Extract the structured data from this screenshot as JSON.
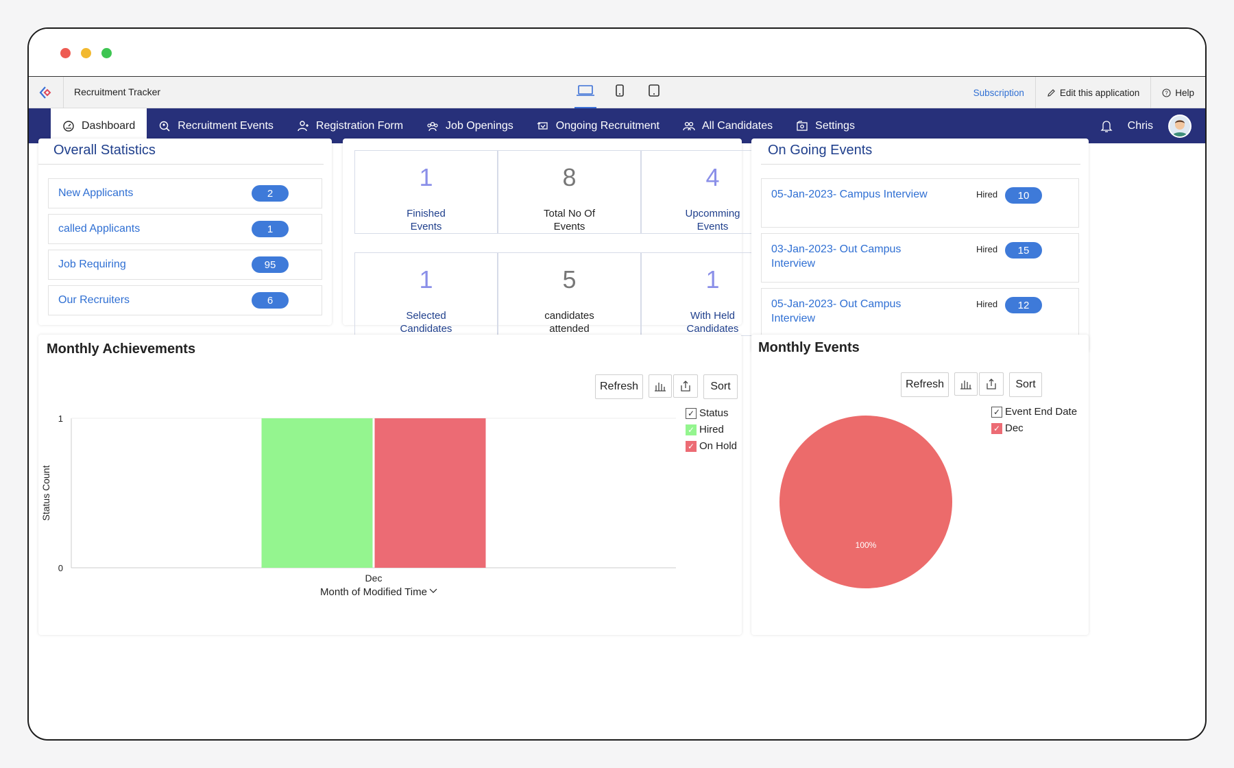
{
  "app": {
    "title": "Recruitment Tracker",
    "subscription": "Subscription",
    "edit_app": "Edit this application",
    "help": "Help"
  },
  "nav": {
    "items": [
      {
        "label": "Dashboard",
        "icon": "dashboard-icon"
      },
      {
        "label": "Recruitment Events",
        "icon": "search-people-icon"
      },
      {
        "label": "Registration Form",
        "icon": "user-form-icon"
      },
      {
        "label": "Job Openings",
        "icon": "team-icon"
      },
      {
        "label": "Ongoing Recruitment",
        "icon": "cycle-icon"
      },
      {
        "label": "All Candidates",
        "icon": "users-icon"
      },
      {
        "label": "Settings",
        "icon": "settings-icon"
      }
    ],
    "user": "Chris"
  },
  "overall": {
    "title": "Overall Statistics",
    "rows": [
      {
        "label": "New Applicants",
        "count": "2"
      },
      {
        "label": "called Applicants",
        "count": "1"
      },
      {
        "label": "Job Requiring",
        "count": "95"
      },
      {
        "label": "Our Recruiters",
        "count": "6"
      }
    ]
  },
  "tiles": [
    {
      "num": "1",
      "line1": "Finished",
      "line2": "Events"
    },
    {
      "num": "8",
      "line1": "Total No Of",
      "line2": "Events"
    },
    {
      "num": "4",
      "line1": "Upcomming",
      "line2": "Events"
    },
    {
      "num": "1",
      "line1": "Selected",
      "line2": "Candidates"
    },
    {
      "num": "5",
      "line1": "candidates",
      "line2": "attended"
    },
    {
      "num": "1",
      "line1": "With Held",
      "line2": "Candidates"
    }
  ],
  "ongoing": {
    "title": "On Going Events",
    "hired_label": "Hired",
    "events": [
      {
        "name": "05-Jan-2023- Campus Interview",
        "hired": "10"
      },
      {
        "name": "03-Jan-2023- Out Campus Interview",
        "hired": "15"
      },
      {
        "name": "05-Jan-2023- Out Campus Interview",
        "hired": "12"
      }
    ]
  },
  "monthly_achievements": {
    "title": "Monthly Achievements",
    "refresh": "Refresh",
    "sort": "Sort",
    "legend_title": "Status",
    "xlabel": "Month of Modified Time",
    "ylabel": "Status Count"
  },
  "monthly_events": {
    "title": "Monthly Events",
    "refresh": "Refresh",
    "sort": "Sort",
    "legend_title": "Event End Date",
    "slice_label": "100%"
  },
  "colors": {
    "nav_bg": "#27307a",
    "accent": "#3e7ad9",
    "hired": "#94f58f",
    "on_hold": "#ec6b74",
    "pie": "#ec6b6b"
  },
  "chart_data": [
    {
      "type": "bar",
      "categories": [
        "Dec"
      ],
      "series": [
        {
          "name": "Hired",
          "values": [
            1
          ]
        },
        {
          "name": "On Hold",
          "values": [
            1
          ]
        }
      ],
      "xlabel": "Month of Modified Time",
      "ylabel": "Status Count",
      "ylim": [
        0,
        1
      ],
      "yticks": [
        "0",
        "1"
      ],
      "legend": "top-right"
    },
    {
      "type": "pie",
      "labels": [
        "Dec"
      ],
      "values": [
        100
      ],
      "data_labels": [
        "100%"
      ],
      "legend": "top-right"
    }
  ]
}
